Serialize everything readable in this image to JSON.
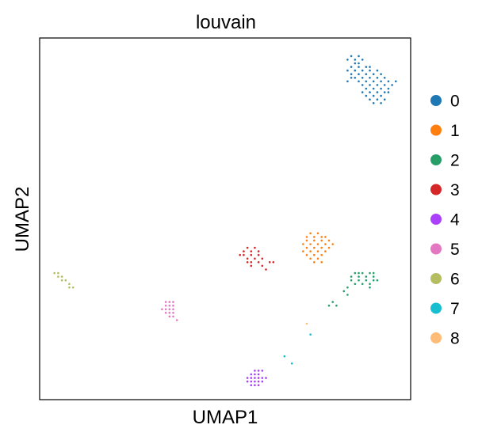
{
  "chart_data": {
    "type": "scatter",
    "title": "louvain",
    "xlabel": "UMAP1",
    "ylabel": "UMAP2",
    "xlim": [
      0,
      100
    ],
    "ylim": [
      0,
      100
    ],
    "grid": false,
    "ticks": "none",
    "legend_placement": "right",
    "legend": [
      {
        "label": "0",
        "color": "#1f77b4"
      },
      {
        "label": "1",
        "color": "#ff7f0e"
      },
      {
        "label": "2",
        "color": "#279e68"
      },
      {
        "label": "3",
        "color": "#d62728"
      },
      {
        "label": "4",
        "color": "#aa40fc"
      },
      {
        "label": "5",
        "color": "#e377c2"
      },
      {
        "label": "6",
        "color": "#b5bd61"
      },
      {
        "label": "7",
        "color": "#17becf"
      },
      {
        "label": "8",
        "color": "#ffbb78"
      }
    ],
    "clusters": [
      {
        "label": "0",
        "color": "#1f77b4",
        "points": [
          [
            83,
            94
          ],
          [
            84,
            95
          ],
          [
            85,
            94
          ],
          [
            86,
            95
          ],
          [
            87,
            94
          ],
          [
            85,
            93
          ],
          [
            86,
            93
          ],
          [
            84,
            92
          ],
          [
            86,
            92
          ],
          [
            88,
            92
          ],
          [
            83,
            91
          ],
          [
            85,
            91
          ],
          [
            87,
            91
          ],
          [
            89,
            91
          ],
          [
            84,
            90
          ],
          [
            86,
            90
          ],
          [
            88,
            90
          ],
          [
            90,
            90
          ],
          [
            92,
            90
          ],
          [
            85,
            89
          ],
          [
            87,
            89
          ],
          [
            89,
            89
          ],
          [
            91,
            89
          ],
          [
            93,
            89
          ],
          [
            86,
            88
          ],
          [
            88,
            88
          ],
          [
            90,
            88
          ],
          [
            92,
            88
          ],
          [
            94,
            88
          ],
          [
            87,
            87
          ],
          [
            89,
            87
          ],
          [
            91,
            87
          ],
          [
            93,
            87
          ],
          [
            88,
            86
          ],
          [
            90,
            86
          ],
          [
            92,
            86
          ],
          [
            94,
            86
          ],
          [
            87,
            85
          ],
          [
            89,
            85
          ],
          [
            91,
            85
          ],
          [
            93,
            85
          ],
          [
            88,
            84
          ],
          [
            90,
            84
          ],
          [
            92,
            84
          ],
          [
            89,
            83
          ],
          [
            91,
            83
          ],
          [
            93,
            83
          ],
          [
            90,
            82
          ],
          [
            92,
            82
          ],
          [
            96,
            88
          ],
          [
            95,
            87
          ],
          [
            94,
            85
          ],
          [
            84,
            89
          ],
          [
            83,
            88
          ],
          [
            91,
            91
          ],
          [
            89,
            92
          ]
        ]
      },
      {
        "label": "1",
        "color": "#ff7f0e",
        "points": [
          [
            72,
            45
          ],
          [
            73,
            46
          ],
          [
            74,
            45
          ],
          [
            75,
            46
          ],
          [
            76,
            45
          ],
          [
            72,
            44
          ],
          [
            74,
            44
          ],
          [
            76,
            44
          ],
          [
            78,
            44
          ],
          [
            71,
            43
          ],
          [
            73,
            43
          ],
          [
            75,
            43
          ],
          [
            77,
            43
          ],
          [
            79,
            43
          ],
          [
            72,
            42
          ],
          [
            74,
            42
          ],
          [
            76,
            42
          ],
          [
            78,
            42
          ],
          [
            73,
            41
          ],
          [
            75,
            41
          ],
          [
            77,
            41
          ],
          [
            72,
            40
          ],
          [
            74,
            40
          ],
          [
            76,
            40
          ],
          [
            73,
            39
          ],
          [
            75,
            39
          ],
          [
            74,
            38
          ],
          [
            76,
            38
          ],
          [
            77,
            45
          ],
          [
            71,
            41
          ]
        ]
      },
      {
        "label": "2",
        "color": "#279e68",
        "points": [
          [
            84,
            34
          ],
          [
            85,
            35
          ],
          [
            86,
            34
          ],
          [
            87,
            35
          ],
          [
            88,
            34
          ],
          [
            89,
            35
          ],
          [
            90,
            34
          ],
          [
            84,
            33
          ],
          [
            86,
            33
          ],
          [
            88,
            33
          ],
          [
            90,
            33
          ],
          [
            85,
            32
          ],
          [
            87,
            32
          ],
          [
            89,
            32
          ],
          [
            91,
            33
          ],
          [
            83,
            31
          ],
          [
            89,
            31
          ],
          [
            82,
            30
          ],
          [
            83,
            29
          ],
          [
            79,
            27
          ],
          [
            80,
            26
          ],
          [
            78,
            26
          ],
          [
            86,
            35
          ],
          [
            90,
            35
          ]
        ]
      },
      {
        "label": "3",
        "color": "#d62728",
        "points": [
          [
            55,
            41
          ],
          [
            56,
            42
          ],
          [
            57,
            41
          ],
          [
            58,
            42
          ],
          [
            59,
            41
          ],
          [
            55,
            40
          ],
          [
            57,
            40
          ],
          [
            59,
            40
          ],
          [
            56,
            39
          ],
          [
            58,
            39
          ],
          [
            60,
            39
          ],
          [
            57,
            38
          ],
          [
            59,
            38
          ],
          [
            62,
            38
          ],
          [
            63,
            38
          ],
          [
            57,
            37
          ],
          [
            60,
            37
          ],
          [
            61,
            36
          ],
          [
            56,
            38
          ],
          [
            54,
            40
          ]
        ]
      },
      {
        "label": "4",
        "color": "#aa40fc",
        "points": [
          [
            57,
            7
          ],
          [
            58,
            8
          ],
          [
            59,
            7
          ],
          [
            60,
            8
          ],
          [
            57,
            6
          ],
          [
            58,
            6
          ],
          [
            59,
            6
          ],
          [
            60,
            6
          ],
          [
            56,
            6
          ],
          [
            57,
            5
          ],
          [
            58,
            5
          ],
          [
            59,
            5
          ],
          [
            60,
            5
          ],
          [
            57,
            4
          ],
          [
            58,
            4
          ],
          [
            59,
            4
          ],
          [
            56,
            5
          ],
          [
            61,
            6
          ],
          [
            58,
            7
          ],
          [
            59,
            8
          ]
        ]
      },
      {
        "label": "5",
        "color": "#e377c2",
        "points": [
          [
            34,
            27
          ],
          [
            35,
            27
          ],
          [
            36,
            27
          ],
          [
            34,
            26
          ],
          [
            35,
            26
          ],
          [
            36,
            26
          ],
          [
            34,
            25
          ],
          [
            35,
            25
          ],
          [
            36,
            25
          ],
          [
            34,
            24
          ],
          [
            35,
            24
          ],
          [
            36,
            24
          ],
          [
            35,
            23
          ],
          [
            36,
            23
          ],
          [
            37,
            22
          ],
          [
            33,
            25
          ]
        ]
      },
      {
        "label": "6",
        "color": "#b5bd61",
        "points": [
          [
            4,
            35
          ],
          [
            5,
            34
          ],
          [
            6,
            34
          ],
          [
            6,
            33
          ],
          [
            7,
            33
          ],
          [
            8,
            32
          ],
          [
            8,
            31
          ],
          [
            9,
            31
          ],
          [
            5,
            35
          ]
        ]
      },
      {
        "label": "7",
        "color": "#17becf",
        "points": [
          [
            66,
            12
          ],
          [
            68,
            10
          ],
          [
            73,
            18
          ]
        ]
      },
      {
        "label": "8",
        "color": "#ffbb78",
        "points": [
          [
            72,
            21
          ]
        ]
      }
    ]
  }
}
